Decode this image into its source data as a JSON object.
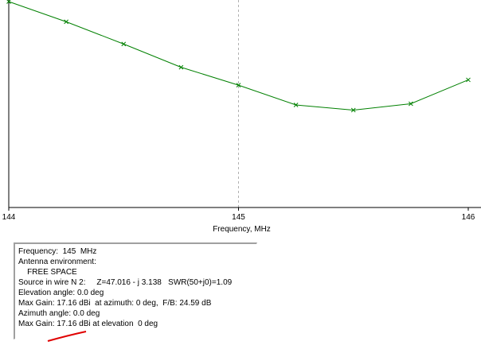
{
  "chart_data": {
    "type": "line",
    "title": "",
    "xlabel": "Frequency, MHz",
    "ylabel": "",
    "xlim": [
      144,
      146
    ],
    "ylim": [
      0,
      1
    ],
    "x_ticks": [
      "144",
      "145",
      "146"
    ],
    "grid": true,
    "series": [
      {
        "color": "#008000",
        "marker": "x",
        "x": [
          144.0,
          144.25,
          144.5,
          144.75,
          145.0,
          145.25,
          145.5,
          145.75,
          146.0
        ],
        "y": [
          1.0,
          0.902,
          0.794,
          0.681,
          0.594,
          0.498,
          0.473,
          0.504,
          0.62
        ]
      }
    ]
  },
  "info_panel": {
    "lines": [
      "Frequency:  145  MHz",
      "Antenna environment:",
      "    FREE SPACE",
      "Source in wire N 2:     Z=47.016 - j 3.138   SWR(50+j0)=1.09",
      "Elevation angle: 0.0 deg",
      "Max Gain: 17.16 dBi  at azimuth: 0 deg,  F/B: 24.59 dB",
      "Azimuth angle: 0.0 deg",
      "Max Gain: 17.16 dBi at elevation  0 deg"
    ]
  },
  "colors": {
    "series": "#008000",
    "annotation": "#e00000",
    "grid": "#b0b0b0"
  }
}
